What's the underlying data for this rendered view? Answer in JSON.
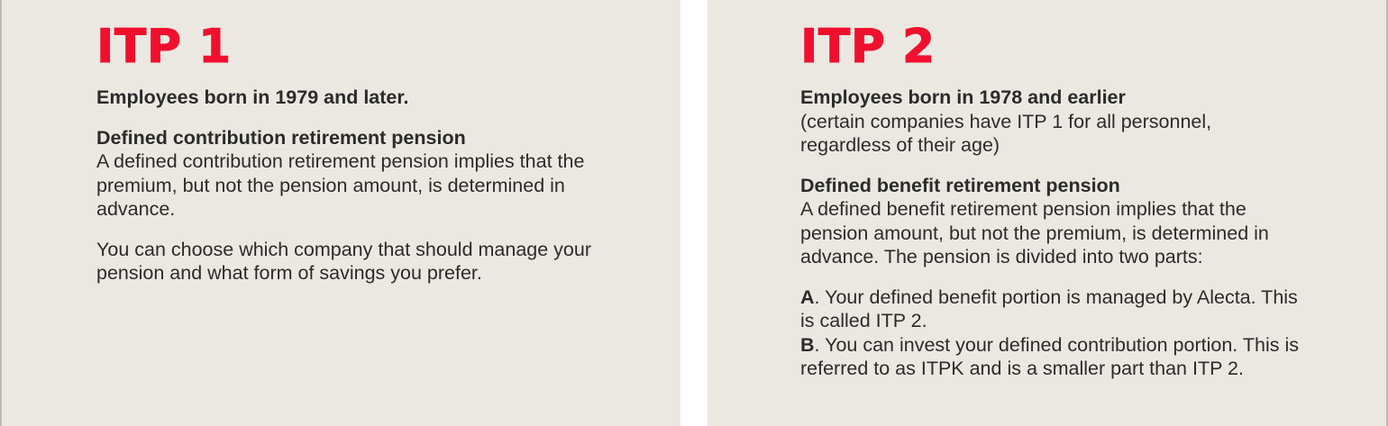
{
  "left": {
    "title": "ITP 1",
    "eligibility": "Employees born in 1979 and later.",
    "section_heading": "Defined contribution retirement pension",
    "section_body": "A defined contribution retirement pension implies that the premium, but not the pension amount, is determined in advance.",
    "choice_text": "You can choose which company that should manage your pension and what form of savings you prefer."
  },
  "right": {
    "title": "ITP 2",
    "eligibility": "Employees born in 1978 and earlier",
    "eligibility_note": "(certain companies have ITP 1 for all personnel, regardless of their age)",
    "section_heading": "Defined benefit retirement pension",
    "section_body": "A defined benefit retirement pension implies that the pension amount, but not the premium, is determined in advance. The pension is divided into two parts:",
    "part_a_label": "A",
    "part_a_text": ". Your defined benefit portion is managed by Alecta. This is called ITP 2.",
    "part_b_label": "B",
    "part_b_text": ". You can invest your defined contribution portion. This is referred to as ITPK and is a smaller part than ITP 2."
  },
  "colors": {
    "title_red": "#f0102e",
    "panel_bg": "#ebe8e2",
    "text": "#2b2b2b"
  }
}
